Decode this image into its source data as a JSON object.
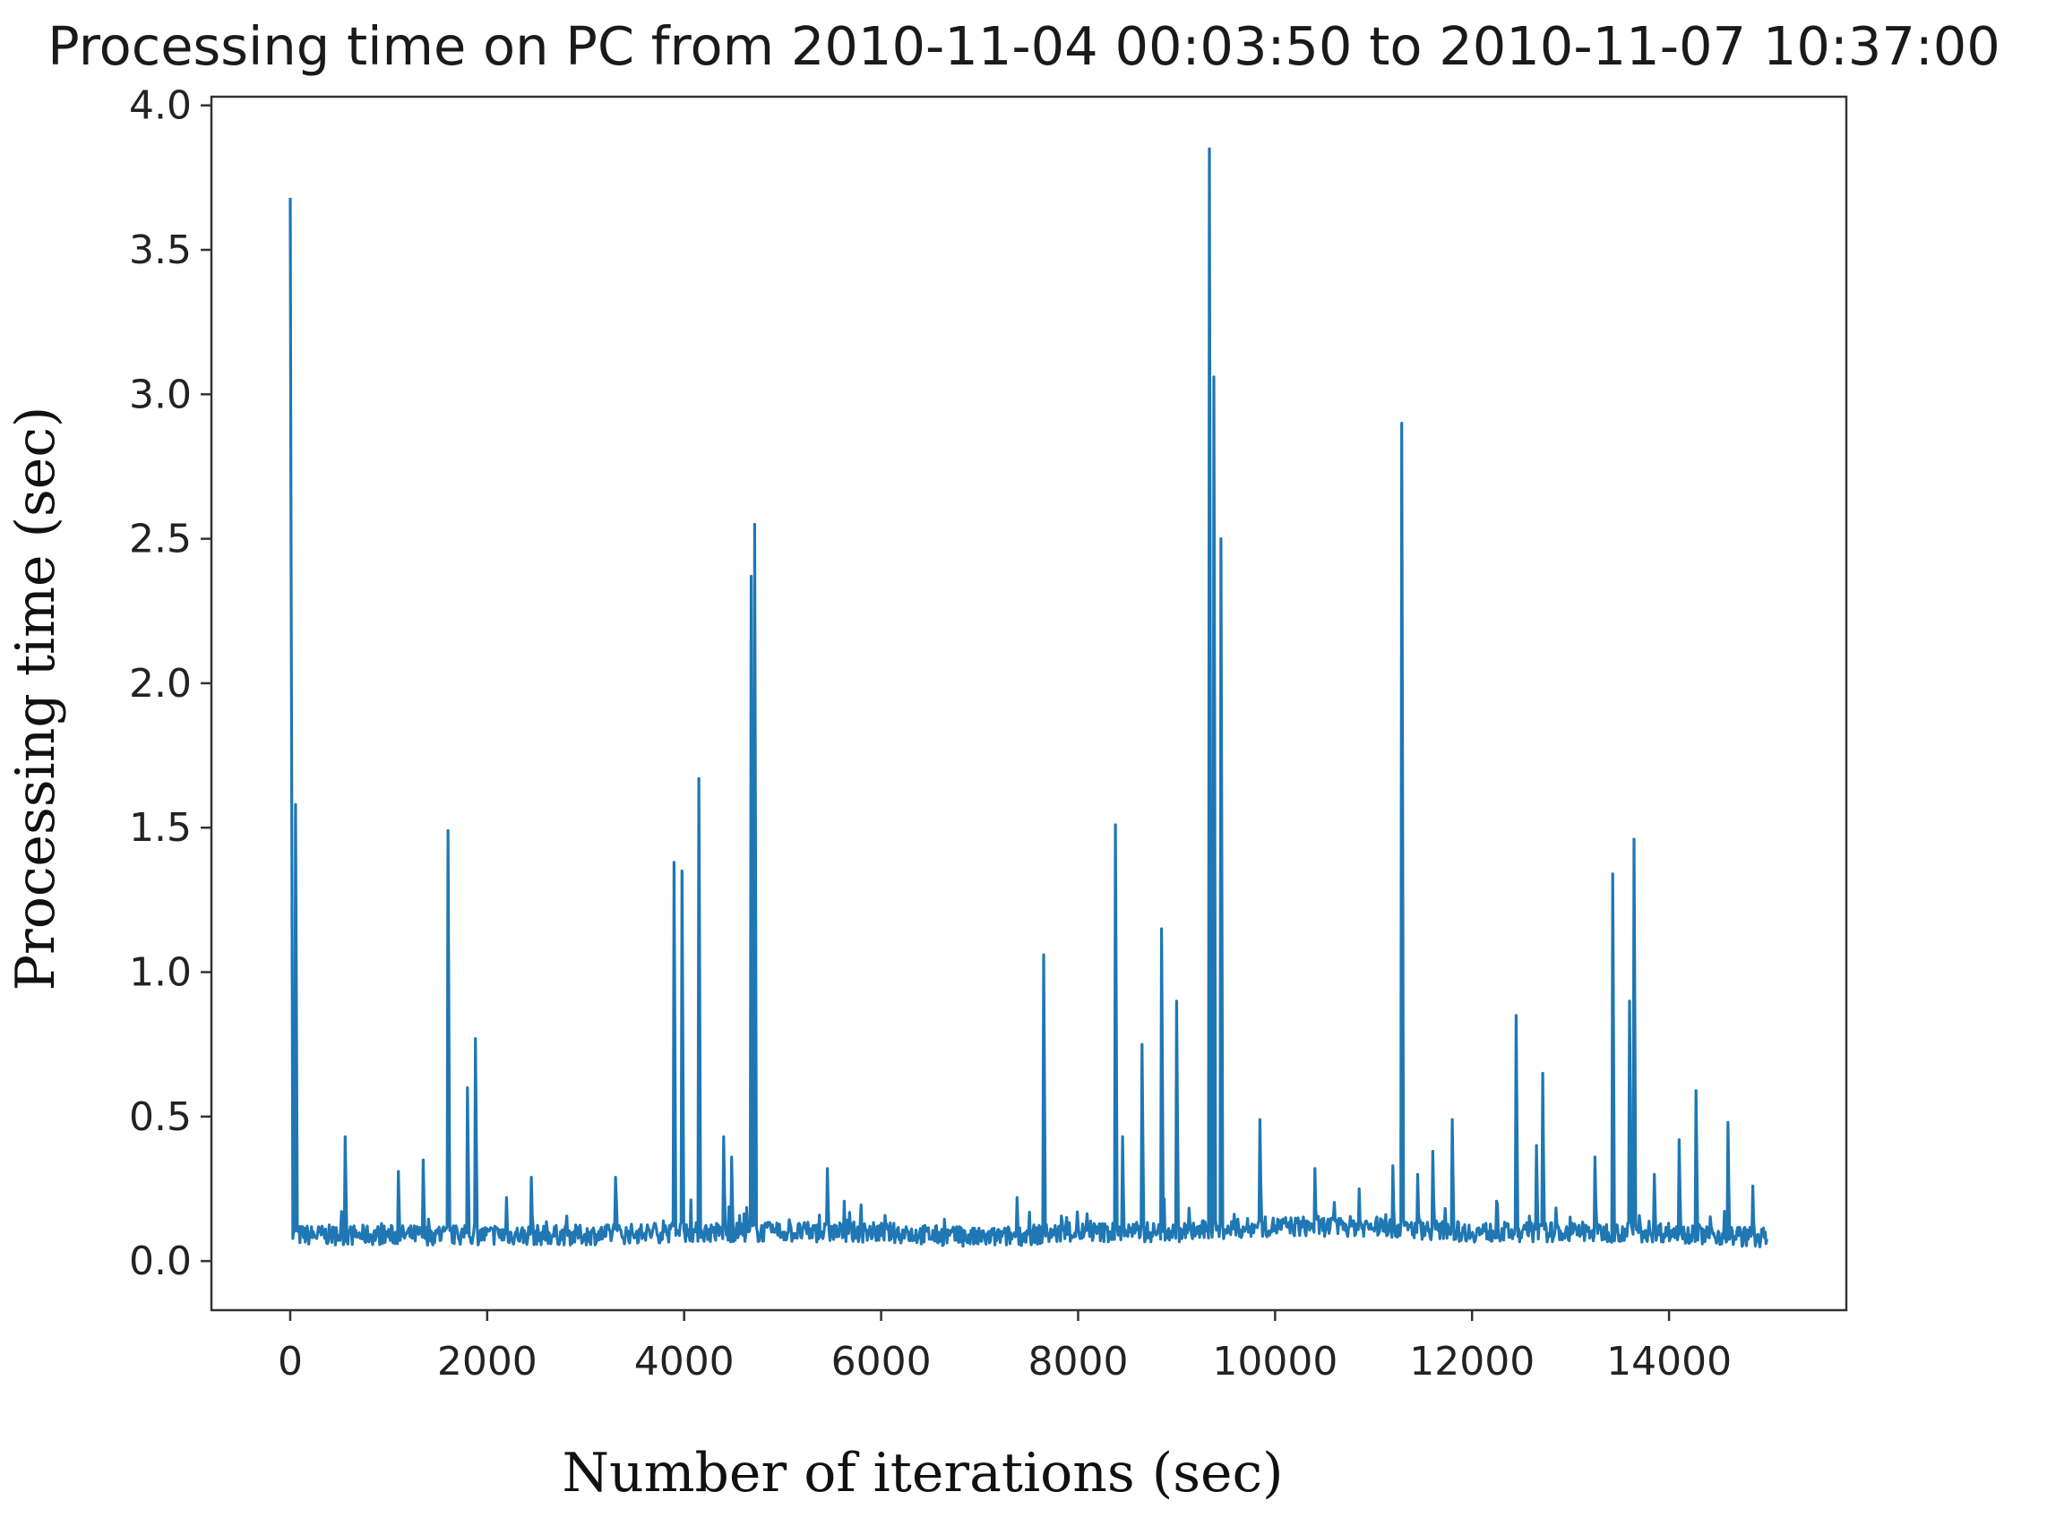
{
  "chart_data": {
    "type": "line",
    "title": "Processing time on PC from 2010-11-04 00:03:50 to 2010-11-07 10:37:00",
    "xlabel": "Number of iterations (sec)",
    "ylabel": "Processing time (sec)",
    "xlim": [
      -800,
      15800
    ],
    "ylim": [
      -0.17,
      4.03
    ],
    "xticks": [
      0,
      2000,
      4000,
      6000,
      8000,
      10000,
      12000,
      14000
    ],
    "xtick_labels": [
      "0",
      "2000",
      "4000",
      "6000",
      "8000",
      "10000",
      "12000",
      "14000"
    ],
    "yticks": [
      0.0,
      0.5,
      1.0,
      1.5,
      2.0,
      2.5,
      3.0,
      3.5,
      4.0
    ],
    "ytick_labels": [
      "0.0",
      "0.5",
      "1.0",
      "1.5",
      "2.0",
      "2.5",
      "3.0",
      "3.5",
      "4.0"
    ],
    "grid": false,
    "line_color": "#1f77b4",
    "series": [
      {
        "baseline": [
          [
            0,
            0.09
          ],
          [
            1000,
            0.09
          ],
          [
            2000,
            0.09
          ],
          [
            3000,
            0.09
          ],
          [
            4000,
            0.1
          ],
          [
            5000,
            0.1
          ],
          [
            6000,
            0.1
          ],
          [
            7000,
            0.08
          ],
          [
            8000,
            0.1
          ],
          [
            9000,
            0.1
          ],
          [
            10000,
            0.12
          ],
          [
            11000,
            0.12
          ],
          [
            12000,
            0.1
          ],
          [
            13000,
            0.1
          ],
          [
            14000,
            0.1
          ],
          [
            15000,
            0.08
          ]
        ],
        "peaks": [
          [
            0,
            3.68
          ],
          [
            10,
            2.45
          ],
          [
            50,
            1.58
          ],
          [
            560,
            0.43
          ],
          [
            1100,
            0.31
          ],
          [
            1350,
            0.35
          ],
          [
            1600,
            1.49
          ],
          [
            1800,
            0.6
          ],
          [
            1880,
            0.77
          ],
          [
            2200,
            0.22
          ],
          [
            2450,
            0.29
          ],
          [
            3300,
            0.29
          ],
          [
            3900,
            1.38
          ],
          [
            3980,
            1.35
          ],
          [
            4150,
            1.67
          ],
          [
            4400,
            0.43
          ],
          [
            4480,
            0.36
          ],
          [
            4680,
            2.37
          ],
          [
            4720,
            2.55
          ],
          [
            5450,
            0.32
          ],
          [
            7380,
            0.22
          ],
          [
            7650,
            1.06
          ],
          [
            8380,
            1.51
          ],
          [
            8450,
            0.43
          ],
          [
            8650,
            0.75
          ],
          [
            8850,
            1.15
          ],
          [
            9000,
            0.9
          ],
          [
            9330,
            3.85
          ],
          [
            9380,
            3.06
          ],
          [
            9450,
            2.5
          ],
          [
            9850,
            0.49
          ],
          [
            10400,
            0.32
          ],
          [
            10850,
            0.25
          ],
          [
            11200,
            0.33
          ],
          [
            11290,
            2.9
          ],
          [
            11450,
            0.3
          ],
          [
            11600,
            0.38
          ],
          [
            11800,
            0.49
          ],
          [
            12450,
            0.85
          ],
          [
            12650,
            0.4
          ],
          [
            12720,
            0.65
          ],
          [
            13250,
            0.36
          ],
          [
            13430,
            1.34
          ],
          [
            13600,
            0.9
          ],
          [
            13640,
            1.46
          ],
          [
            13850,
            0.3
          ],
          [
            14100,
            0.42
          ],
          [
            14270,
            0.59
          ],
          [
            14600,
            0.48
          ],
          [
            14850,
            0.26
          ],
          [
            14950,
            0.1
          ]
        ]
      }
    ]
  }
}
